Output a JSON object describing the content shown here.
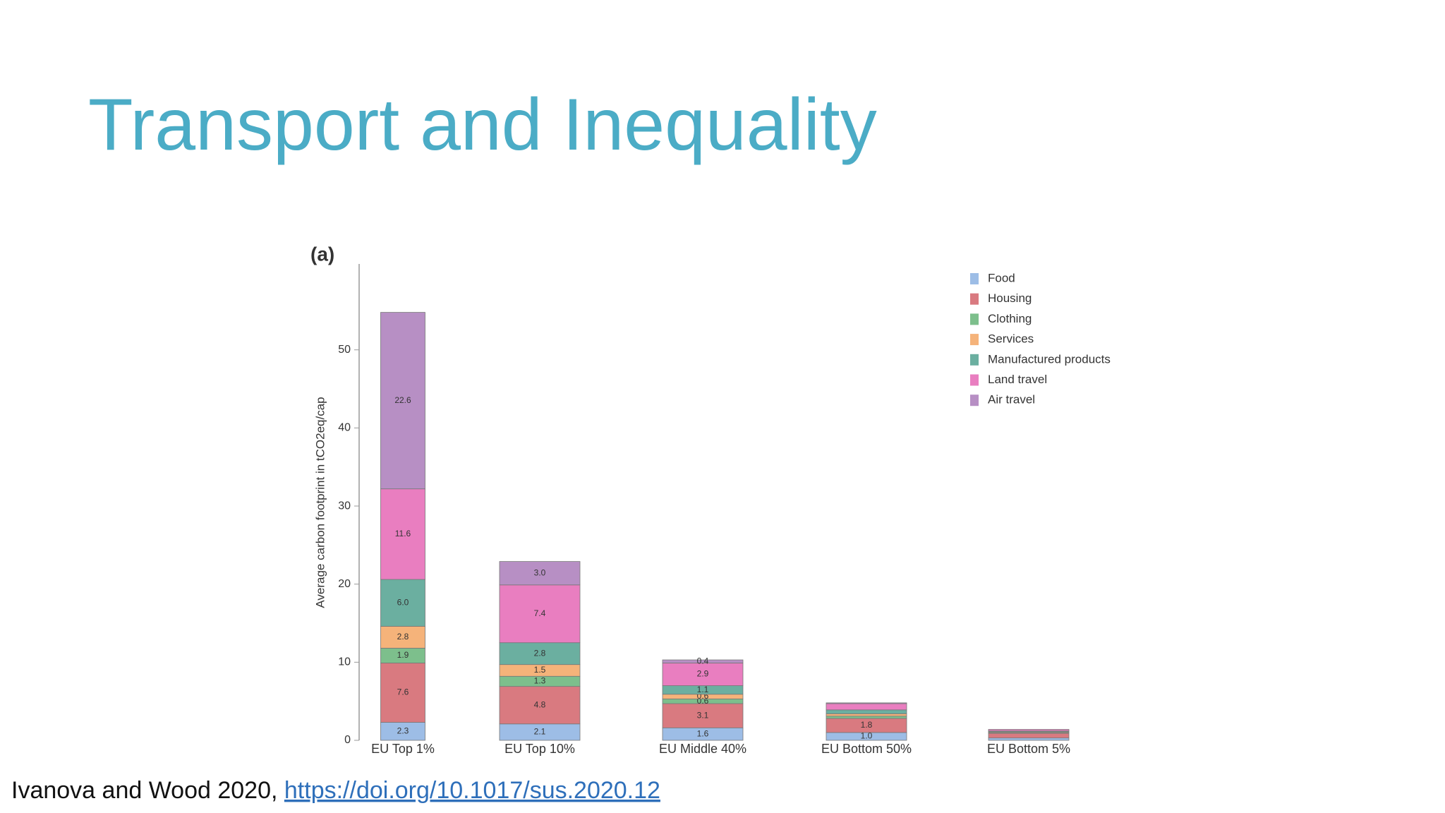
{
  "slide": {
    "title": "Transport and Inequality",
    "citation": {
      "text": "Ivanova and Wood 2020, ",
      "link": "https://doi.org/10.1017/sus.2020.12"
    }
  },
  "chart_data": {
    "type": "stacked_bar",
    "panel_label": "(a)",
    "y_label": "Average carbon footprint in tCO2eq/cap",
    "categories": [
      "EU Top 1%",
      "EU Top 10%",
      "EU Middle 40%",
      "EU Bottom 50%",
      "EU Bottom 5%"
    ],
    "ylim": [
      0,
      61
    ],
    "yticks": [
      0,
      10,
      20,
      30,
      40,
      50
    ],
    "legend": "upper right",
    "series": [
      {
        "name": "Food",
        "color": "#9dbde6",
        "values": [
          2.3,
          2.1,
          1.6,
          1.0,
          0.3
        ],
        "value_labels": [
          "2.3",
          "2.1",
          "1.6",
          "1.0",
          null
        ]
      },
      {
        "name": "Housing",
        "color": "#d97a80",
        "values": [
          7.6,
          4.8,
          3.1,
          1.8,
          0.6
        ],
        "value_labels": [
          "7.6",
          "4.8",
          "3.1",
          "1.8",
          null
        ]
      },
      {
        "name": "Clothing",
        "color": "#7dbf8c",
        "values": [
          1.9,
          1.3,
          0.6,
          0.3,
          0.1
        ],
        "value_labels": [
          "1.9",
          "1.3",
          "0.6",
          null,
          null
        ]
      },
      {
        "name": "Services",
        "color": "#f5b37a",
        "values": [
          2.8,
          1.5,
          0.6,
          0.3,
          0.1
        ],
        "value_labels": [
          "2.8",
          "1.5",
          "0.6",
          null,
          null
        ]
      },
      {
        "name": "Manufactured products",
        "color": "#6bafa0",
        "values": [
          6.0,
          2.8,
          1.1,
          0.5,
          0.1
        ],
        "value_labels": [
          "6.0",
          "2.8",
          "1.1",
          null,
          null
        ]
      },
      {
        "name": "Land travel",
        "color": "#e97ec0",
        "values": [
          11.6,
          7.4,
          2.9,
          0.8,
          0.2
        ],
        "value_labels": [
          "11.6",
          "7.4",
          "2.9",
          null,
          null
        ]
      },
      {
        "name": "Air travel",
        "color": "#b78fc4",
        "values": [
          22.6,
          3.0,
          0.4,
          0.1,
          0.0
        ],
        "value_labels": [
          "22.6",
          "3.0",
          "0.4",
          null,
          null
        ]
      }
    ]
  }
}
